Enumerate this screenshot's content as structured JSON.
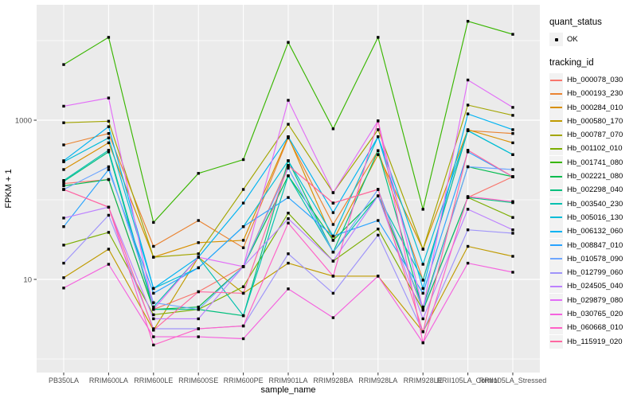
{
  "chart_data": {
    "type": "line",
    "title": "",
    "xlabel": "sample_name",
    "ylabel": "FPKM + 1",
    "y_scale": "log10",
    "ylim": [
      0.7,
      28000
    ],
    "grid": "on",
    "panel_bg": "#EBEBEB",
    "grid_color": "#FFFFFF",
    "tick_label_color": "#4D4D4D",
    "point_color": "#000000",
    "y_ticks": [
      {
        "label": "1000",
        "value": 1000
      },
      {
        "label": "10",
        "value": 10
      }
    ],
    "y_minor_values": [
      1,
      100,
      10000
    ],
    "categories": [
      "PB350LA",
      "RRIM600LA",
      "RRIM600LE",
      "RRIM600SE",
      "RRIM600PE",
      "RRIM901LA",
      "RRIM928BA",
      "RRIM928LA",
      "RRIM928LE",
      "RRII105LA_Control",
      "RRII105LA_Stressed"
    ],
    "series": [
      {
        "name": "Hb_000078_030",
        "color": "#F8766D",
        "values": [
          160,
          180,
          4.2,
          7,
          14.5,
          270,
          91,
          135,
          4.1,
          107,
          195
        ]
      },
      {
        "name": "Hb_000193_230",
        "color": "#EA8331",
        "values": [
          490,
          680,
          26,
          55,
          25,
          600,
          49,
          415,
          9.8,
          740,
          680
        ]
      },
      {
        "name": "Hb_000284_010",
        "color": "#D89000",
        "values": [
          240,
          520,
          19,
          29,
          31,
          620,
          31,
          370,
          24,
          760,
          520
        ]
      },
      {
        "name": "Hb_000580_170",
        "color": "#C09B00",
        "values": [
          10.5,
          24,
          2.3,
          19,
          6.7,
          16,
          11,
          11,
          2.2,
          26,
          19.5
        ]
      },
      {
        "name": "Hb_000787_070",
        "color": "#A3A500",
        "values": [
          930,
          970,
          19,
          21,
          135,
          890,
          123,
          760,
          24,
          1550,
          1150
        ]
      },
      {
        "name": "Hb_001102_010",
        "color": "#7CAE00",
        "values": [
          27,
          39,
          3.6,
          4.2,
          8.1,
          68,
          17,
          43,
          4.1,
          107,
          60
        ]
      },
      {
        "name": "Hb_001741_080",
        "color": "#39B600",
        "values": [
          5000,
          11000,
          52,
          215,
          320,
          9500,
          780,
          11000,
          76,
          17500,
          12000
        ]
      },
      {
        "name": "Hb_002221_080",
        "color": "#00BB4E",
        "values": [
          150,
          180,
          4.2,
          4.5,
          14.5,
          200,
          31,
          112,
          4.5,
          260,
          195
        ]
      },
      {
        "name": "Hb_002298_040",
        "color": "#00BF7D",
        "values": [
          170,
          400,
          4.2,
          4.2,
          3.5,
          310,
          22,
          415,
          4.1,
          107,
          92
        ]
      },
      {
        "name": "Hb_003540_230",
        "color": "#00C0AF",
        "values": [
          175,
          420,
          4.5,
          19,
          3.5,
          200,
          22,
          112,
          9.8,
          740,
          370
        ]
      },
      {
        "name": "Hb_005016_130",
        "color": "#00BCD8",
        "values": [
          300,
          600,
          7.7,
          14,
          46,
          310,
          35,
          620,
          15.5,
          740,
          370
        ]
      },
      {
        "name": "Hb_006132_060",
        "color": "#00B3F2",
        "values": [
          310,
          830,
          7.7,
          19,
          91,
          620,
          69,
          620,
          7.7,
          1200,
          760
        ]
      },
      {
        "name": "Hb_008847_010",
        "color": "#29A3FF",
        "values": [
          46,
          240,
          6.7,
          14,
          46,
          107,
          35,
          55,
          6.7,
          400,
          195
        ]
      },
      {
        "name": "Hb_010578_090",
        "color": "#6EA6FF",
        "values": [
          135,
          260,
          5.1,
          4.2,
          14.5,
          250,
          22,
          135,
          4.2,
          260,
          240
        ]
      },
      {
        "name": "Hb_012799_060",
        "color": "#9F94FA",
        "values": [
          16,
          64,
          2.4,
          2.4,
          2.6,
          21,
          6.7,
          36,
          2.2,
          42,
          38
        ]
      },
      {
        "name": "Hb_024505_040",
        "color": "#BC81FF",
        "values": [
          59,
          81,
          3.2,
          3.2,
          14.5,
          58,
          17,
          112,
          3.2,
          76,
          42
        ]
      },
      {
        "name": "Hb_029879_080",
        "color": "#E26EF7",
        "values": [
          1500,
          1900,
          4.2,
          19,
          14.5,
          1780,
          123,
          980,
          4.2,
          3200,
          1450
        ]
      },
      {
        "name": "Hb_030765_020",
        "color": "#F562DE",
        "values": [
          7.8,
          15.5,
          1.9,
          1.9,
          1.8,
          7.6,
          3.3,
          11,
          1.6,
          16,
          12.3
        ]
      },
      {
        "name": "Hb_060668_010",
        "color": "#FF61C7",
        "values": [
          135,
          81,
          1.5,
          2.4,
          2.6,
          51,
          11,
          980,
          1.6,
          110,
          95
        ]
      },
      {
        "name": "Hb_115919_020",
        "color": "#FF68A1",
        "values": [
          135,
          81,
          2.3,
          7,
          6.7,
          270,
          91,
          135,
          2.2,
          420,
          195
        ]
      }
    ],
    "legends": {
      "quant_status": {
        "title": "quant_status",
        "items": [
          {
            "label": "OK",
            "marker": "black-point"
          }
        ]
      },
      "tracking_id": {
        "title": "tracking_id"
      }
    }
  }
}
